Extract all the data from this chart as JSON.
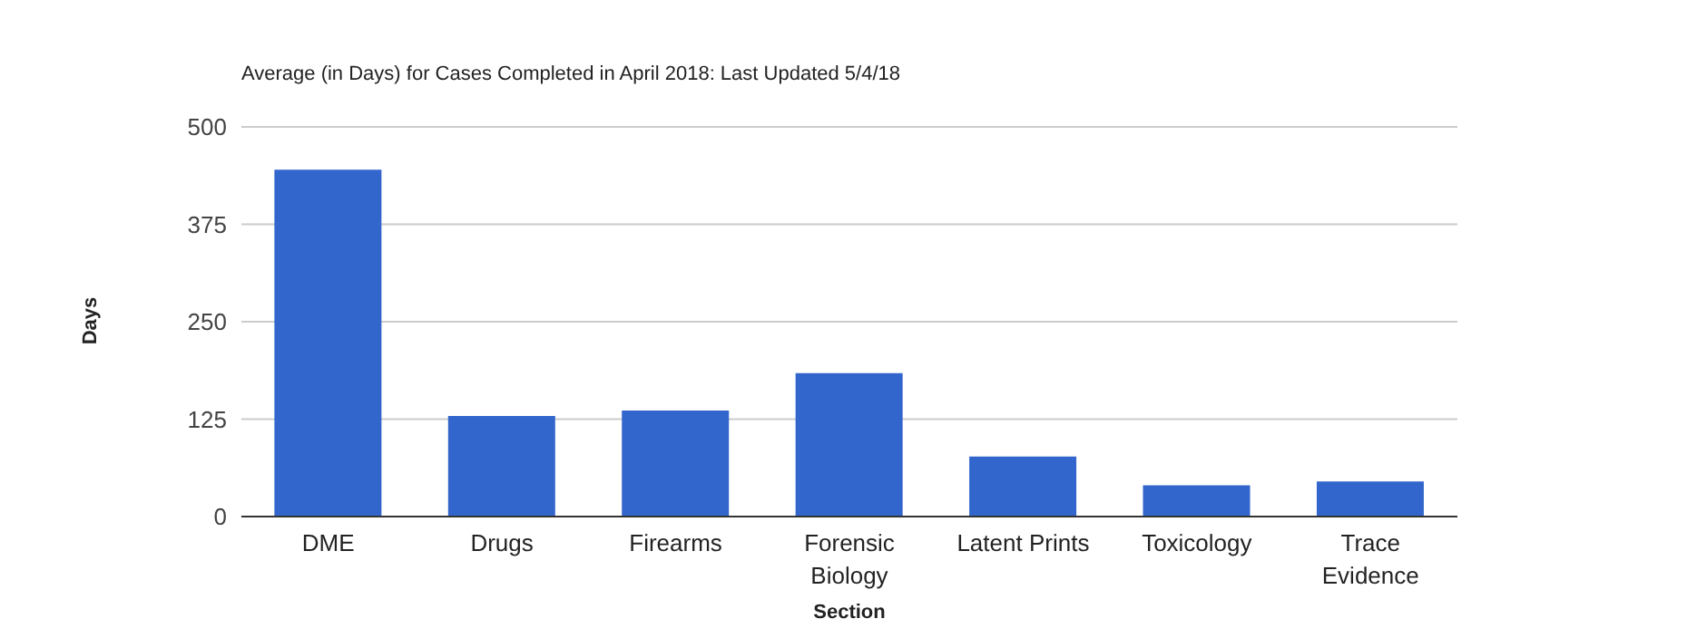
{
  "chart_data": {
    "type": "bar",
    "title": "Average (in Days) for Cases Completed in April 2018: Last Updated 5/4/18",
    "xlabel": "Section",
    "ylabel": "Days",
    "categories": [
      "DME",
      "Drugs",
      "Firearms",
      "Forensic Biology",
      "Latent Prints",
      "Toxicology",
      "Trace Evidence"
    ],
    "values": [
      445,
      129,
      136,
      184,
      77,
      40,
      45
    ],
    "color": "#3366cc",
    "ylim": [
      0,
      500
    ],
    "yticks": [
      0,
      125,
      250,
      375,
      500
    ],
    "grid": "y"
  }
}
